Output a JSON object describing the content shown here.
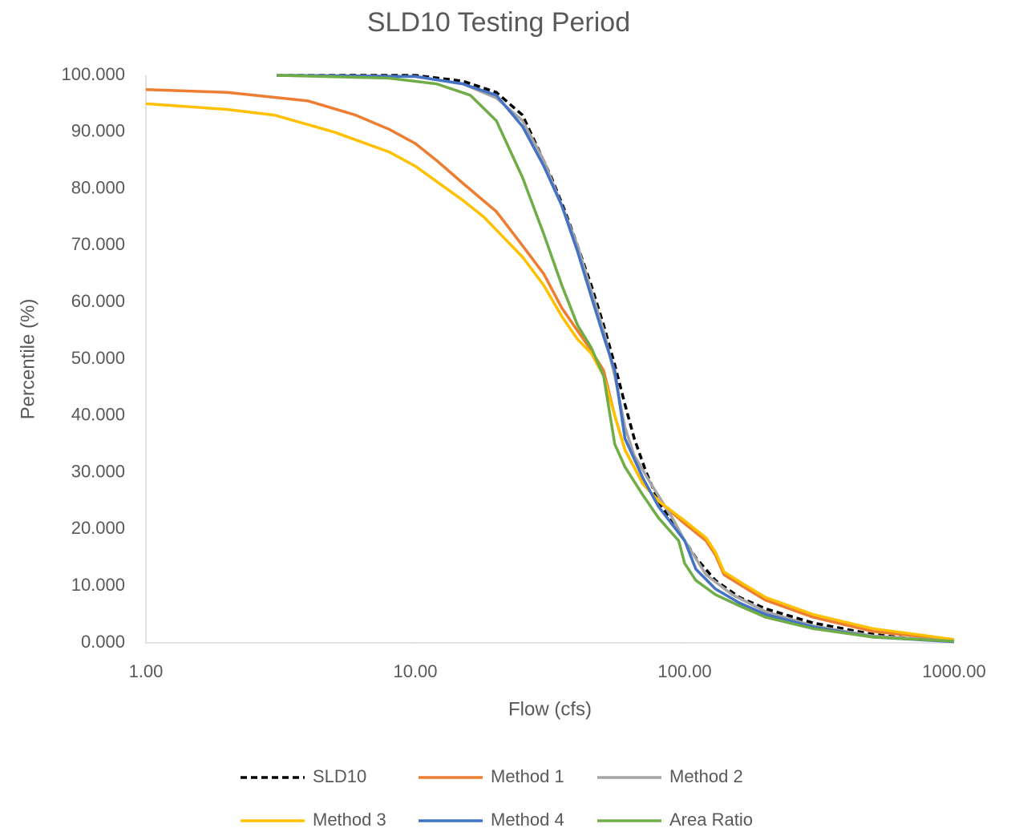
{
  "chart_data": {
    "type": "line",
    "title": "SLD10 Testing Period",
    "x_label": "Flow (cfs)",
    "y_label": "Percentile (%)",
    "log_x": true,
    "xlim": [
      1,
      1000
    ],
    "ylim": [
      0,
      100
    ],
    "xticks": [
      {
        "value": 1,
        "label": "1.00"
      },
      {
        "value": 10,
        "label": "10.00"
      },
      {
        "value": 100,
        "label": "100.00"
      },
      {
        "value": 1000,
        "label": "1000.00"
      }
    ],
    "yticks": [
      {
        "value": 0,
        "label": "0.000"
      },
      {
        "value": 10,
        "label": "10.000"
      },
      {
        "value": 20,
        "label": "20.000"
      },
      {
        "value": 30,
        "label": "30.000"
      },
      {
        "value": 40,
        "label": "40.000"
      },
      {
        "value": 50,
        "label": "50.000"
      },
      {
        "value": 60,
        "label": "60.000"
      },
      {
        "value": 70,
        "label": "70.000"
      },
      {
        "value": 80,
        "label": "80.000"
      },
      {
        "value": 90,
        "label": "90.000"
      },
      {
        "value": 100,
        "label": "100.000"
      }
    ],
    "legend": "bottom",
    "series": [
      {
        "name": "SLD10",
        "color": "#000000",
        "dashed": true,
        "x": [
          3.06,
          10,
          15,
          20,
          25,
          28,
          32,
          36,
          40,
          45,
          50,
          55,
          60,
          65,
          72,
          80,
          90,
          100,
          110,
          130,
          160,
          200,
          300,
          500,
          700,
          1000
        ],
        "values": [
          100,
          100,
          99,
          97,
          93,
          88,
          82,
          76,
          70,
          63,
          56,
          49,
          42,
          36,
          30,
          25,
          21,
          18,
          15,
          11,
          8,
          6,
          3.5,
          1.5,
          0.7,
          0.3
        ]
      },
      {
        "name": "Method 1",
        "color": "#ed7d31",
        "x": [
          1,
          2,
          4,
          6,
          8,
          10,
          12,
          15,
          20,
          25,
          30,
          35,
          40,
          45,
          50,
          55,
          60,
          70,
          80,
          100,
          120,
          130,
          140,
          170,
          200,
          300,
          500,
          1000
        ],
        "values": [
          97.5,
          97,
          95.5,
          93,
          90.5,
          88,
          85,
          81,
          76,
          70,
          65,
          59,
          55,
          51.5,
          48,
          40,
          34,
          28,
          25,
          21,
          18,
          15.5,
          12,
          9.5,
          7.5,
          4.5,
          2,
          0.5
        ]
      },
      {
        "name": "Method 2",
        "color": "#a5a5a5",
        "x": [
          3.06,
          10,
          15,
          20,
          25,
          30,
          35,
          40,
          45,
          50,
          55,
          60,
          65,
          75,
          90,
          100,
          120,
          150,
          200,
          300,
          500,
          1000
        ],
        "values": [
          100,
          99.8,
          98.5,
          96,
          92,
          85,
          77,
          70,
          62,
          55,
          47,
          38,
          33,
          28,
          22,
          18,
          12,
          8.5,
          5.5,
          3,
          1.2,
          0.3
        ]
      },
      {
        "name": "Method 3",
        "color": "#ffc000",
        "x": [
          1,
          2,
          3,
          5,
          8,
          10,
          15,
          18,
          25,
          30,
          35,
          40,
          45,
          50,
          55,
          60,
          70,
          80,
          100,
          120,
          130,
          140,
          170,
          200,
          300,
          500,
          1000
        ],
        "values": [
          95,
          94,
          93,
          90,
          86.5,
          84,
          78,
          75,
          68,
          63,
          57.5,
          53.5,
          51,
          47,
          40,
          34,
          28,
          25,
          21.5,
          18.5,
          16,
          12.5,
          10,
          8,
          5,
          2.5,
          0.6
        ]
      },
      {
        "name": "Method 4",
        "color": "#4472c4",
        "x": [
          3.06,
          10,
          15,
          20,
          25,
          30,
          35,
          40,
          45,
          50,
          55,
          60,
          70,
          80,
          100,
          110,
          130,
          160,
          200,
          300,
          500,
          1000
        ],
        "values": [
          100,
          99.8,
          98.5,
          96.5,
          91,
          84,
          77,
          69,
          61,
          54,
          48,
          36,
          29,
          24,
          18,
          13,
          9.5,
          7,
          5,
          2.8,
          1,
          0.2
        ]
      },
      {
        "name": "Area Ratio",
        "color": "#70ad47",
        "x": [
          3.06,
          8,
          12,
          16,
          20,
          25,
          30,
          35,
          40,
          45,
          50,
          55,
          60,
          70,
          80,
          95,
          100,
          110,
          130,
          160,
          200,
          300,
          500,
          1000
        ],
        "values": [
          100,
          99.5,
          98.5,
          96.5,
          92,
          82,
          72,
          63,
          56,
          52,
          47,
          35,
          31,
          26,
          22,
          18,
          14,
          11,
          8.5,
          6.5,
          4.5,
          2.5,
          1,
          0.3
        ]
      }
    ]
  }
}
